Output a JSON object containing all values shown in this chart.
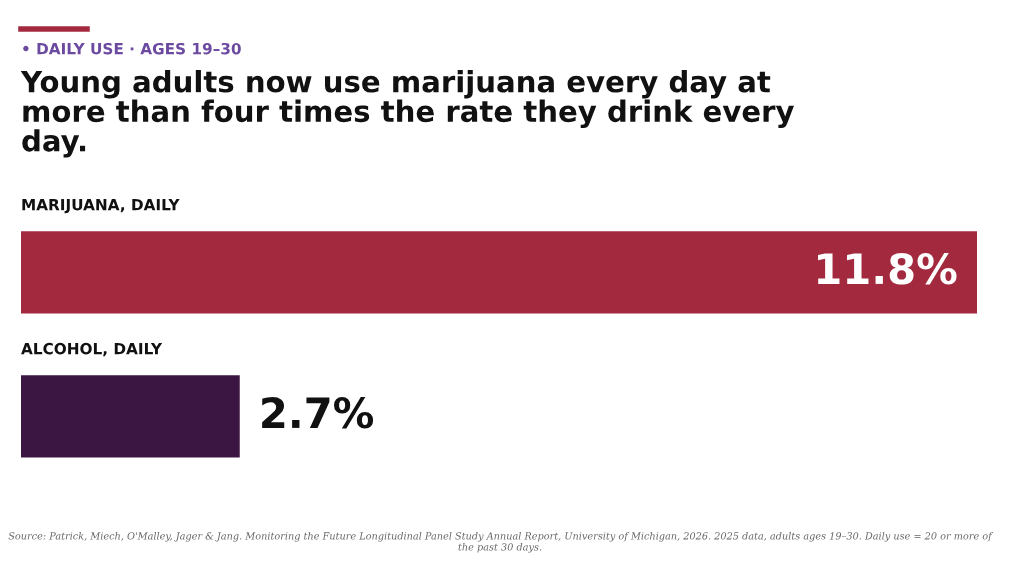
{
  "chart_data": {
    "type": "bar",
    "orientation": "horizontal",
    "subtitle": "• DAILY USE · AGES 19–30",
    "title": "Young adults now use marijuana every day at\nmore than four times the rate they drink every\nday.",
    "categories": [
      "MARIJUANA, DAILY",
      "ALCOHOL, DAILY"
    ],
    "values": [
      11.8,
      2.7
    ],
    "colors": [
      "#a32a3e",
      "#3b1642"
    ],
    "value_labels": [
      "11.8%",
      "2.7%"
    ],
    "xlim": [
      0,
      11.8
    ],
    "annotations": [
      "Source: Patrick, Miech, O'Malley, Jager & Jang. Monitoring the Future Longitudinal Panel Study Annual Report, University of Michigan, 2026. 2025 data, adults ages 19–30. Daily use = 20 or more of the past 30 days."
    ]
  }
}
